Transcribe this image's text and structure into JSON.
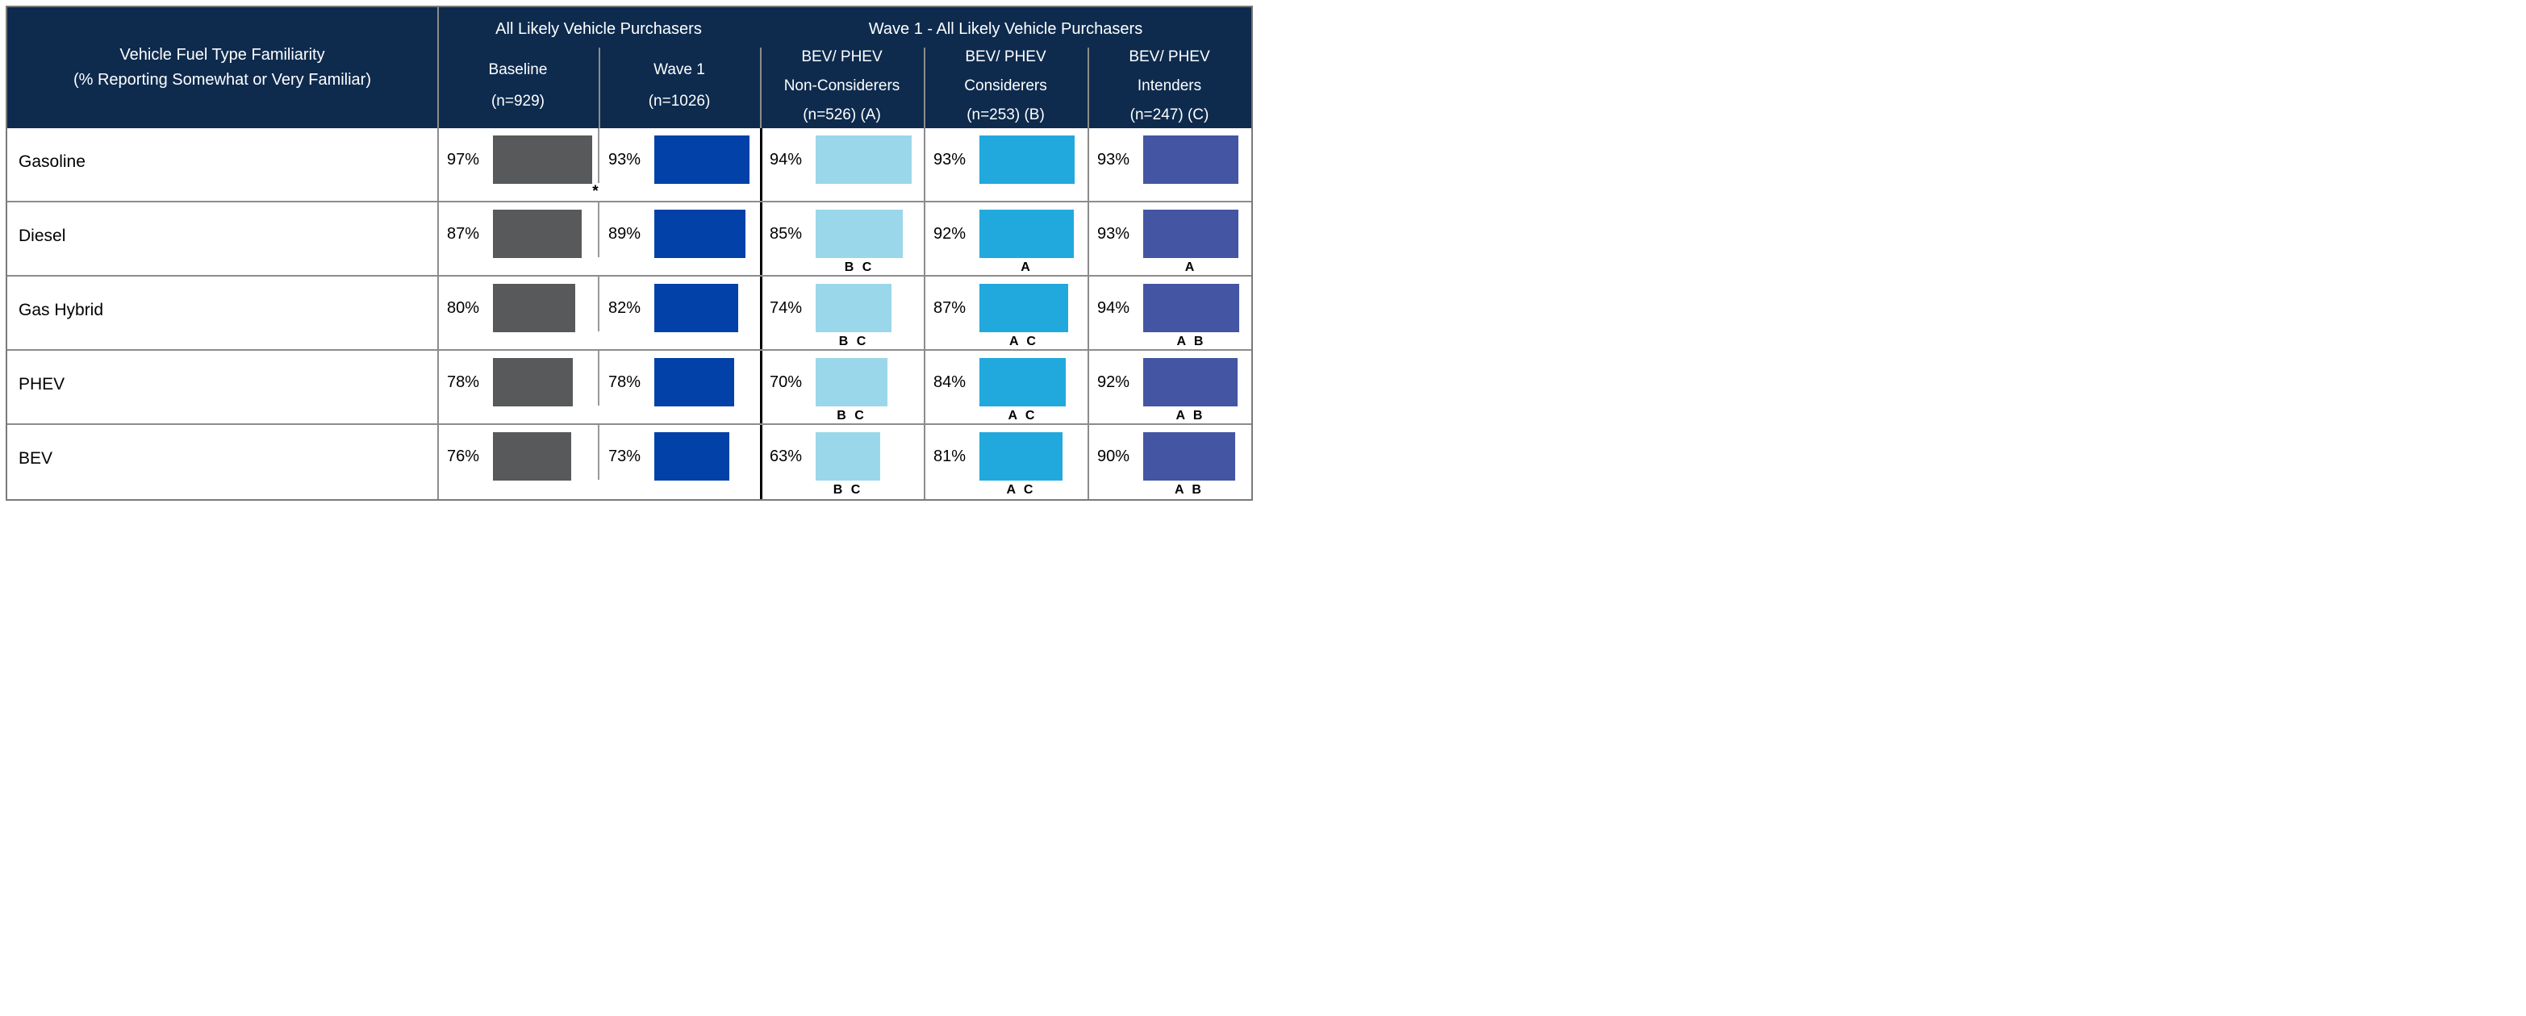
{
  "table": {
    "title_lines": [
      "Vehicle Fuel Type Familiarity",
      "(% Reporting Somewhat or Very Familiar)"
    ],
    "unit": "%",
    "groups": [
      {
        "label": "All Likely Vehicle Purchasers"
      },
      {
        "label": "Wave 1 - All Likely Vehicle Purchasers"
      }
    ],
    "columns": [
      {
        "id": "baseline",
        "lines": [
          "Baseline",
          "(n=929)"
        ],
        "group": 0,
        "color": "#58595b"
      },
      {
        "id": "wave1",
        "lines": [
          "Wave 1",
          "(n=1026)"
        ],
        "group": 0,
        "color": "#0241a8"
      },
      {
        "id": "non-considerers",
        "lines": [
          "BEV/ PHEV",
          "Non-Considerers",
          "(n=526) (A)"
        ],
        "group": 1,
        "color": "#9bd7ea"
      },
      {
        "id": "considerers",
        "lines": [
          "BEV/ PHEV",
          "Considerers",
          "(n=253) (B)"
        ],
        "group": 1,
        "color": "#21a9de"
      },
      {
        "id": "intenders",
        "lines": [
          "BEV/ PHEV",
          "Intenders",
          "(n=247) (C)"
        ],
        "group": 1,
        "color": "#4455a4"
      }
    ],
    "rows": [
      {
        "label": "Gasoline",
        "values": [
          97,
          93,
          94,
          93,
          93
        ],
        "sig": [
          "",
          "",
          "",
          "",
          ""
        ],
        "note": "*"
      },
      {
        "label": "Diesel",
        "values": [
          87,
          89,
          85,
          92,
          93
        ],
        "sig": [
          "",
          "",
          "B C",
          "A",
          "A"
        ],
        "note": ""
      },
      {
        "label": "Gas Hybrid",
        "values": [
          80,
          82,
          74,
          87,
          94
        ],
        "sig": [
          "",
          "",
          "B C",
          "A C",
          "A B"
        ],
        "note": ""
      },
      {
        "label": "PHEV",
        "values": [
          78,
          78,
          70,
          84,
          92
        ],
        "sig": [
          "",
          "",
          "B C",
          "A C",
          "A B"
        ],
        "note": ""
      },
      {
        "label": "BEV",
        "values": [
          76,
          73,
          63,
          81,
          90
        ],
        "sig": [
          "",
          "",
          "B C",
          "A C",
          "A B"
        ],
        "note": ""
      }
    ],
    "colors": {
      "header_bg": "#0e2b4e",
      "header_text": "#ffffff",
      "grid_gray": "#8c8c8c",
      "outer_border": "#7a7a7a",
      "group_divider_black": "#000000",
      "bar_gray": "#58595b",
      "bar_blue": "#0241a8",
      "bar_light_blue": "#9bd7ea",
      "bar_cyan": "#21a9de",
      "bar_indigo": "#4455a4"
    }
  },
  "chart_data": {
    "type": "bar",
    "title": "Vehicle Fuel Type Familiarity (% Reporting Somewhat or Very Familiar)",
    "orientation": "horizontal",
    "unit": "%",
    "xlim": [
      0,
      100
    ],
    "grid": false,
    "categories": [
      "Gasoline",
      "Diesel",
      "Gas Hybrid",
      "PHEV",
      "BEV"
    ],
    "series": [
      {
        "name": "Baseline (n=929)",
        "group": "All Likely Vehicle Purchasers",
        "color": "#58595b",
        "values": [
          97,
          87,
          80,
          78,
          76
        ]
      },
      {
        "name": "Wave 1 (n=1026)",
        "group": "All Likely Vehicle Purchasers",
        "color": "#0241a8",
        "values": [
          93,
          89,
          82,
          78,
          73
        ]
      },
      {
        "name": "BEV/ PHEV Non-Considerers (n=526) (A)",
        "group": "Wave 1 - All Likely Vehicle Purchasers",
        "color": "#9bd7ea",
        "values": [
          94,
          85,
          74,
          70,
          63
        ]
      },
      {
        "name": "BEV/ PHEV Considerers (n=253) (B)",
        "group": "Wave 1 - All Likely Vehicle Purchasers",
        "color": "#21a9de",
        "values": [
          93,
          92,
          87,
          84,
          81
        ]
      },
      {
        "name": "BEV/ PHEV Intenders (n=247) (C)",
        "group": "Wave 1 - All Likely Vehicle Purchasers",
        "color": "#4455a4",
        "values": [
          93,
          93,
          94,
          92,
          90
        ]
      }
    ],
    "annotations": {
      "gasoline_wave1_vs_baseline": "*",
      "significance_letters": {
        "Diesel": {
          "non-considerers": "B C",
          "considerers": "A",
          "intenders": "A"
        },
        "Gas Hybrid": {
          "non-considerers": "B C",
          "considerers": "A C",
          "intenders": "A B"
        },
        "PHEV": {
          "non-considerers": "B C",
          "considerers": "A C",
          "intenders": "A B"
        },
        "BEV": {
          "non-considerers": "B C",
          "considerers": "A C",
          "intenders": "A B"
        }
      }
    }
  }
}
